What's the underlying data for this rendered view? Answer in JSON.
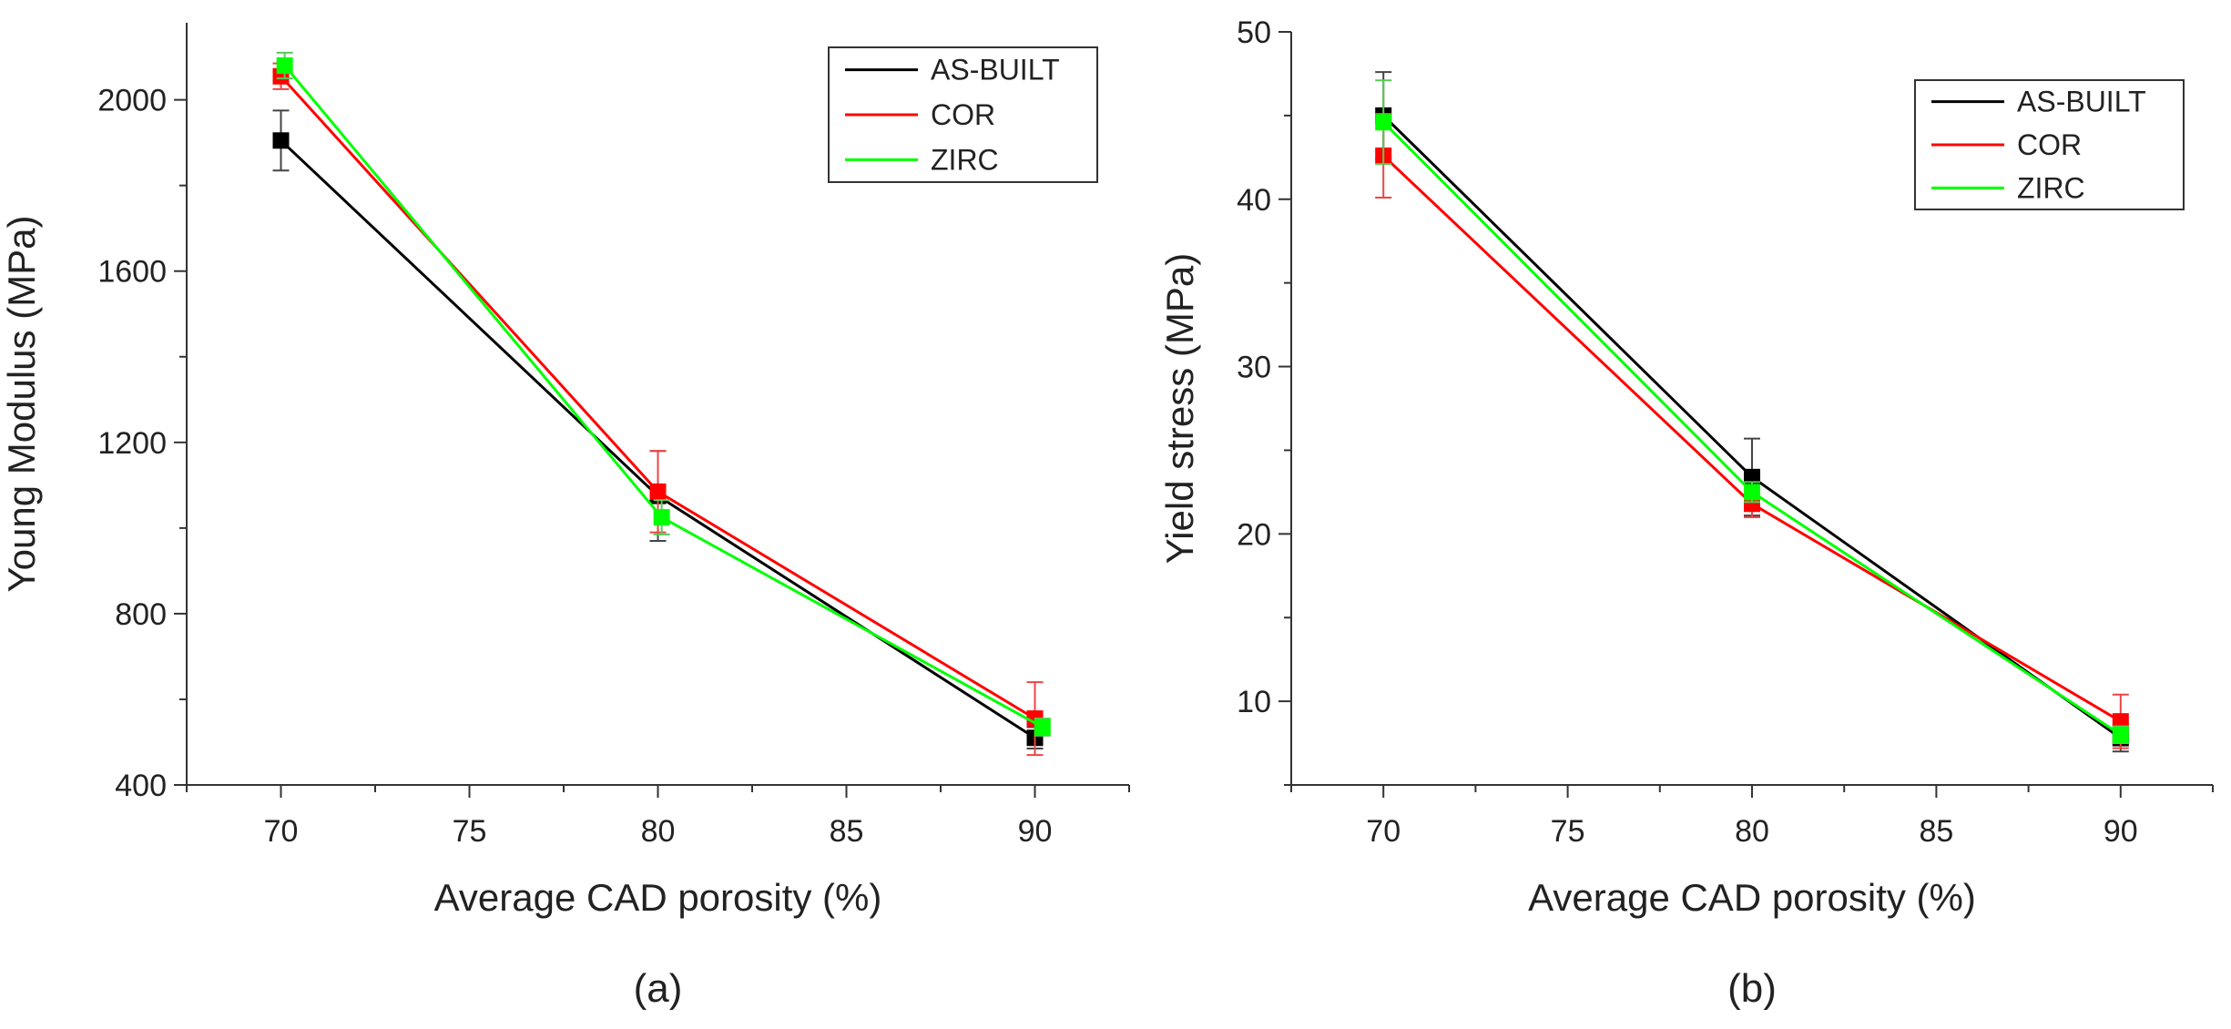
{
  "colors": {
    "AS-BUILT": "#000000",
    "COR": "#ff0000",
    "ZIRC": "#00ff00"
  },
  "chart_data": [
    {
      "type": "line",
      "panel_label": "(a)",
      "xlabel": "Average CAD porosity (%)",
      "ylabel": "Young Modulus (MPa)",
      "xlim": [
        67.5,
        92.5
      ],
      "ylim": [
        400,
        2180
      ],
      "xticks": [
        70,
        75,
        80,
        85,
        90
      ],
      "yticks": [
        400,
        800,
        1200,
        1600,
        2000
      ],
      "grid": false,
      "legend_position": "top-right",
      "series": [
        {
          "name": "AS-BUILT",
          "x": [
            70,
            80,
            90
          ],
          "y": [
            1905,
            1075,
            510
          ],
          "yerr": [
            70,
            105,
            25
          ]
        },
        {
          "name": "COR",
          "x": [
            70,
            80,
            90
          ],
          "y": [
            2055,
            1085,
            555
          ],
          "yerr": [
            30,
            95,
            85
          ]
        },
        {
          "name": "ZIRC",
          "x": [
            70.1,
            80.1,
            90.2
          ],
          "y": [
            2080,
            1025,
            535
          ],
          "yerr": [
            30,
            40,
            20
          ]
        }
      ]
    },
    {
      "type": "line",
      "panel_label": "(b)",
      "xlabel": "Average CAD porosity (%)",
      "ylabel": "Yield stress (MPa)",
      "xlim": [
        67.5,
        92.5
      ],
      "ylim": [
        5,
        50
      ],
      "xticks": [
        70,
        75,
        80,
        85,
        90
      ],
      "yticks": [
        10,
        20,
        30,
        40,
        50
      ],
      "grid": false,
      "legend_position": "top-right",
      "series": [
        {
          "name": "AS-BUILT",
          "x": [
            70,
            80,
            90
          ],
          "y": [
            45,
            23.4,
            7.8
          ],
          "yerr": [
            2.6,
            2.3,
            0.8
          ]
        },
        {
          "name": "COR",
          "x": [
            70,
            80,
            90
          ],
          "y": [
            42.6,
            21.8,
            8.8
          ],
          "yerr": [
            2.5,
            0.8,
            1.6
          ]
        },
        {
          "name": "ZIRC",
          "x": [
            70,
            80,
            90
          ],
          "y": [
            44.6,
            22.5,
            8.0
          ],
          "yerr": [
            2.5,
            0.6,
            0.5
          ]
        }
      ]
    }
  ]
}
